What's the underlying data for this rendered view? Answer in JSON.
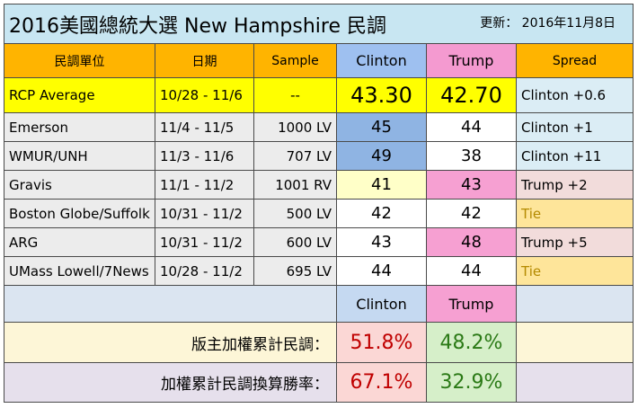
{
  "title": {
    "main": "2016美國總統大選  New Hampshire 民調",
    "update": "更新：  2016年11月8日"
  },
  "headers": {
    "pollster": "民調單位",
    "date": "日期",
    "sample": "Sample",
    "clinton": "Clinton",
    "trump": "Trump",
    "spread": "Spread"
  },
  "rcp": {
    "pollster": "RCP Average",
    "date": "10/28 - 11/6",
    "sample": "--",
    "clinton": "43.30",
    "trump": "42.70",
    "spread": "Clinton +0.6"
  },
  "polls": [
    {
      "pollster": "Emerson",
      "date": "11/4 - 11/5",
      "sample": "1000 LV",
      "clinton": "45",
      "trump": "44",
      "spread": "Clinton +1"
    },
    {
      "pollster": "WMUR/UNH",
      "date": "11/3 - 11/6",
      "sample": "707 LV",
      "clinton": "49",
      "trump": "38",
      "spread": "Clinton +11"
    },
    {
      "pollster": "Gravis",
      "date": "11/1 - 11/2",
      "sample": "1001 RV",
      "clinton": "41",
      "trump": "43",
      "spread": "Trump +2"
    },
    {
      "pollster": "Boston Globe/Suffolk",
      "date": "10/31 - 11/2",
      "sample": "500 LV",
      "clinton": "42",
      "trump": "42",
      "spread": "Tie"
    },
    {
      "pollster": "ARG",
      "date": "10/31 - 11/2",
      "sample": "600 LV",
      "clinton": "43",
      "trump": "48",
      "spread": "Trump +5"
    },
    {
      "pollster": "UMass Lowell/7News",
      "date": "10/28 - 11/2",
      "sample": "695 LV",
      "clinton": "44",
      "trump": "44",
      "spread": "Tie"
    }
  ],
  "summary": {
    "clinton": "Clinton",
    "trump": "Trump",
    "weighted_label": "版主加權累計民調：",
    "weighted_clinton": "51.8%",
    "weighted_trump": "48.2%",
    "winrate_label": "加權累計民調換算勝率：",
    "winrate_clinton": "67.1%",
    "winrate_trump": "32.9%"
  },
  "colors": {
    "header": "#ffb400",
    "clinton": "#8fb4e3",
    "trump": "#f6a0d2",
    "rcp": "#ffff00",
    "tie": "#fee59a"
  }
}
